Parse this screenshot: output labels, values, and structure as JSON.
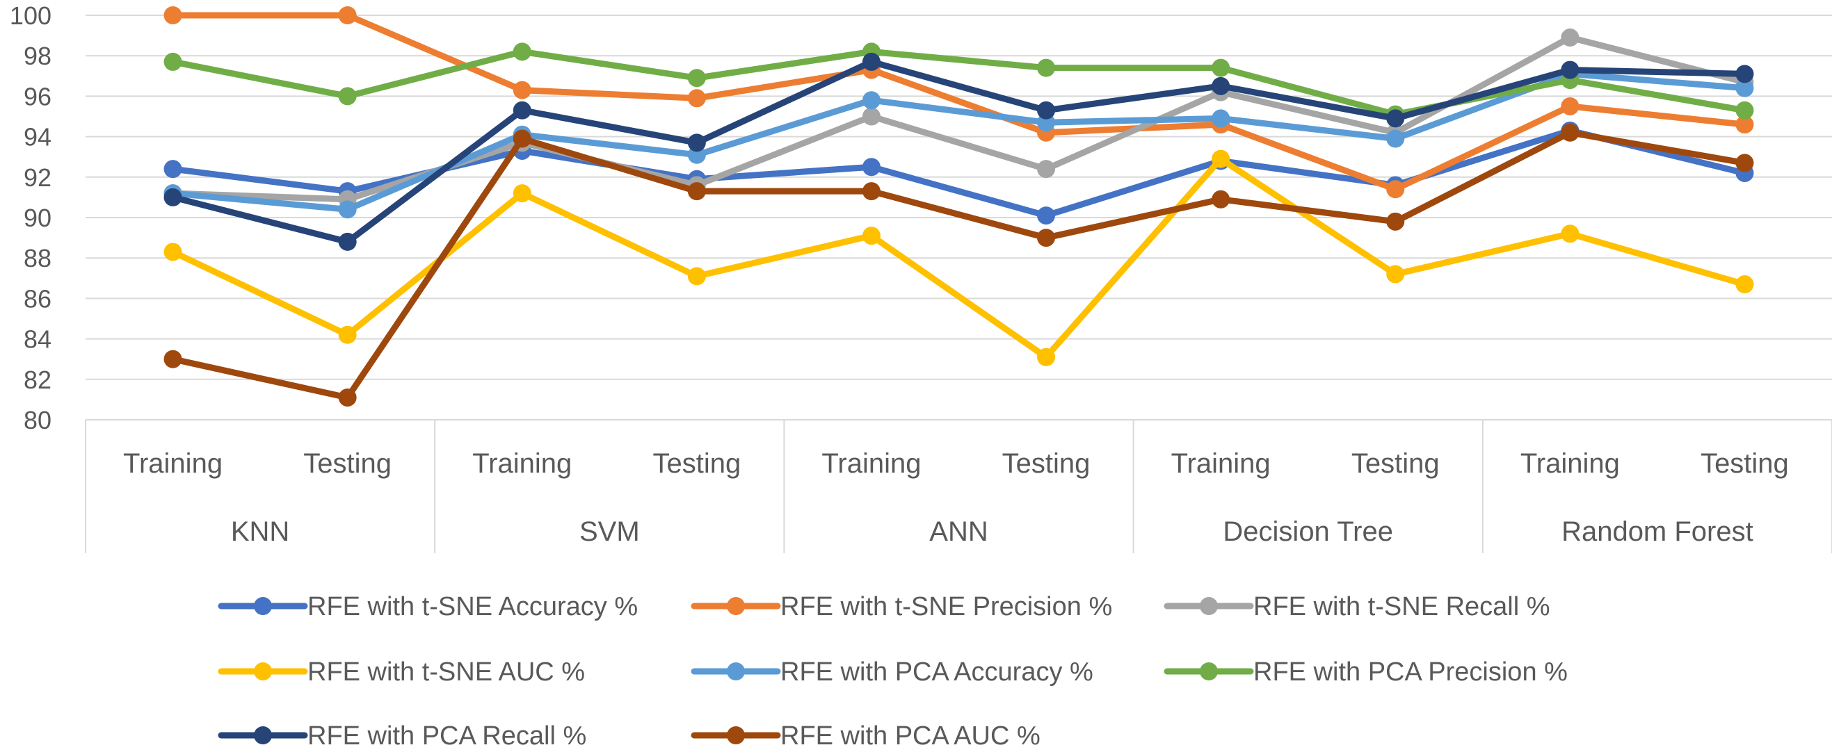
{
  "chart_data": {
    "type": "line",
    "title": "",
    "xlabel": "",
    "ylabel": "",
    "ylim": [
      80,
      100
    ],
    "y_ticks": [
      "80",
      "82",
      "84",
      "86",
      "88",
      "90",
      "92",
      "94",
      "96",
      "98",
      "100"
    ],
    "grid": true,
    "legend_position": "bottom",
    "categories": [
      "Training",
      "Testing",
      "Training",
      "Testing",
      "Training",
      "Testing",
      "Training",
      "Testing",
      "Training",
      "Testing"
    ],
    "groups": [
      "KNN",
      "SVM",
      "ANN",
      "Decision Tree",
      "Random Forest"
    ],
    "series": [
      {
        "name": "RFE with t-SNE Accuracy %",
        "color": "#4472C4",
        "values": [
          92.4,
          91.3,
          93.3,
          91.9,
          92.5,
          90.1,
          92.8,
          91.6,
          94.3,
          92.2
        ]
      },
      {
        "name": "RFE with t-SNE Precision %",
        "color": "#ED7D31",
        "values": [
          100,
          100,
          96.3,
          95.9,
          97.3,
          94.2,
          94.6,
          91.4,
          95.5,
          94.6
        ]
      },
      {
        "name": "RFE with t-SNE Recall %",
        "color": "#A5A5A5",
        "values": [
          91.2,
          90.9,
          93.7,
          91.6,
          95.0,
          92.4,
          96.2,
          94.2,
          98.9,
          96.7
        ]
      },
      {
        "name": "RFE with t-SNE AUC %",
        "color": "#FFC000",
        "values": [
          88.3,
          84.2,
          91.2,
          87.1,
          89.1,
          83.1,
          92.9,
          87.2,
          89.2,
          86.7
        ]
      },
      {
        "name": "RFE with PCA Accuracy %",
        "color": "#5B9BD5",
        "values": [
          91.2,
          90.4,
          94.1,
          93.1,
          95.8,
          94.7,
          94.9,
          93.9,
          97.1,
          96.4
        ]
      },
      {
        "name": "RFE with PCA Precision %",
        "color": "#70AD47",
        "values": [
          97.7,
          96.0,
          98.2,
          96.9,
          98.2,
          97.4,
          97.4,
          95.1,
          96.8,
          95.3
        ]
      },
      {
        "name": "RFE with PCA Recall %",
        "color": "#264478",
        "values": [
          91.0,
          88.8,
          95.3,
          93.7,
          97.7,
          95.3,
          96.5,
          94.9,
          97.3,
          97.1
        ]
      },
      {
        "name": "RFE with PCA AUC %",
        "color": "#9E480E",
        "values": [
          83.0,
          81.1,
          93.9,
          91.3,
          91.3,
          89.0,
          90.9,
          89.8,
          94.2,
          92.7
        ]
      }
    ]
  }
}
